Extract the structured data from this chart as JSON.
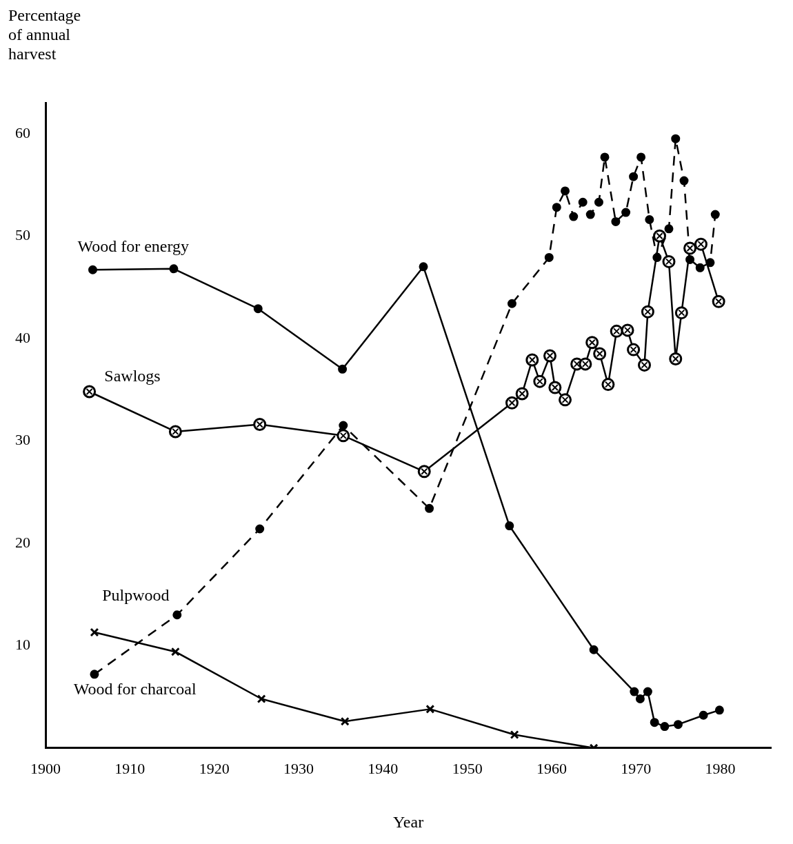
{
  "chart_data": {
    "type": "line",
    "xlabel": "Year",
    "ylabel": "Percentage\nof annual\nharvest",
    "xlim": [
      1900,
      1986
    ],
    "ylim": [
      0,
      63
    ],
    "xticks": [
      1900,
      1910,
      1920,
      1930,
      1940,
      1950,
      1960,
      1970,
      1980
    ],
    "yticks": [
      10,
      20,
      30,
      40,
      50,
      60
    ],
    "grid": false,
    "legend": false,
    "series": [
      {
        "name": "Wood for energy",
        "color": "#000000",
        "marker": "circle",
        "line_style": "solid",
        "x": [
          1905.6,
          1915.2,
          1925.2,
          1935.2,
          1944.8,
          1955.0,
          1965.0,
          1969.8,
          1970.5,
          1971.4,
          1972.2,
          1973.4,
          1975.0,
          1978.0,
          1979.9
        ],
        "values": [
          46.7,
          46.8,
          42.9,
          37.0,
          47.0,
          21.7,
          9.6,
          5.5,
          4.8,
          5.5,
          2.5,
          2.1,
          2.3,
          3.2,
          3.7
        ]
      },
      {
        "name": "Sawlogs",
        "color": "#000000",
        "marker": "circled-cross",
        "line_style": "solid",
        "x": [
          1905.2,
          1915.4,
          1925.4,
          1935.3,
          1944.9,
          1955.3,
          1956.5,
          1957.7,
          1958.6,
          1959.8,
          1960.4,
          1961.6,
          1963.0,
          1964.0,
          1964.8,
          1965.7,
          1966.7,
          1967.7,
          1969.0,
          1969.7,
          1971.0,
          1971.4,
          1972.8,
          1973.9,
          1974.7,
          1975.4,
          1976.4,
          1977.7,
          1979.8
        ],
        "values": [
          34.8,
          30.9,
          31.6,
          30.5,
          27.0,
          33.7,
          34.6,
          37.9,
          35.8,
          38.3,
          35.2,
          34.0,
          37.5,
          37.5,
          39.6,
          38.5,
          35.5,
          40.7,
          40.8,
          38.9,
          37.4,
          42.6,
          50.0,
          47.5,
          38.0,
          42.5,
          48.8,
          49.2,
          43.6
        ]
      },
      {
        "name": "Pulpwood",
        "color": "#000000",
        "marker": "circle",
        "line_style": "dashed",
        "x": [
          1905.8,
          1915.6,
          1925.4,
          1935.3,
          1945.5,
          1955.3,
          1959.7,
          1960.6,
          1961.6,
          1962.6,
          1963.7,
          1964.6,
          1965.6,
          1966.3,
          1967.6,
          1968.8,
          1969.7,
          1970.6,
          1971.6,
          1972.5,
          1973.9,
          1974.7,
          1975.7,
          1976.4,
          1977.6,
          1978.8,
          1979.4
        ],
        "values": [
          7.2,
          13.0,
          21.4,
          31.5,
          23.4,
          43.4,
          47.9,
          52.8,
          54.4,
          51.9,
          53.3,
          52.1,
          53.3,
          57.7,
          51.4,
          52.3,
          55.8,
          57.7,
          51.6,
          47.9,
          50.7,
          59.5,
          55.4,
          47.7,
          46.9,
          47.4,
          52.1
        ]
      },
      {
        "name": "Wood for charcoal",
        "color": "#000000",
        "marker": "cross",
        "line_style": "solid",
        "x": [
          1905.8,
          1915.4,
          1925.6,
          1935.5,
          1945.6,
          1955.6,
          1965.0
        ],
        "values": [
          11.3,
          9.4,
          4.8,
          2.6,
          3.8,
          1.3,
          0
        ]
      }
    ]
  }
}
